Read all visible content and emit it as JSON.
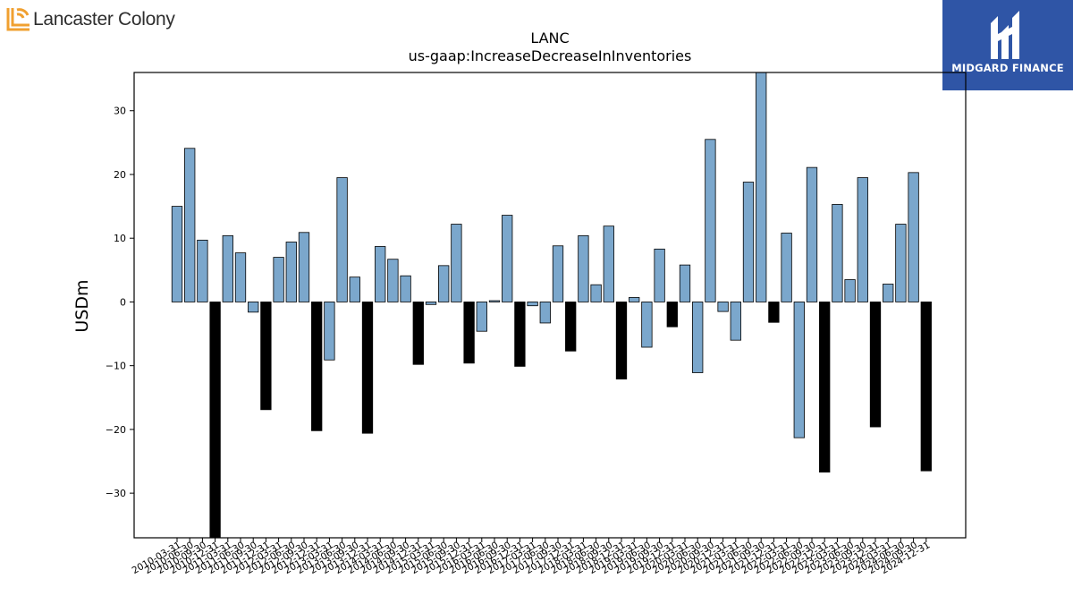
{
  "header": {
    "company_name": "Lancaster Colony",
    "brand_name": "MIDGARD FINANCE"
  },
  "colors": {
    "positive_bar": "#7ba7cc",
    "negative_bar": "#000000",
    "brand_background": "#2f55a6",
    "logo_orange": "#f0a030"
  },
  "icons": {
    "company_logo": "lancaster-colony-logo-icon",
    "brand_logo": "midgard-finance-logo-icon"
  },
  "chart_data": {
    "type": "bar",
    "title": "LANC",
    "subtitle": "us-gaap:IncreaseDecreaseInInventories",
    "xlabel": "",
    "ylabel": "USDm",
    "ylim": [
      -37,
      36
    ],
    "yticks": [
      -30,
      -20,
      -10,
      0,
      10,
      20,
      30
    ],
    "grid": false,
    "legend": "none",
    "series_note_colors": "blue for positive-period bars, black for highlighted bars",
    "categories": [
      "2010-03-31",
      "2010-06-30",
      "2010-09-30",
      "2010-12-31",
      "2011-03-31",
      "2011-06-30",
      "2011-09-30",
      "2011-12-31",
      "2012-03-31",
      "2012-06-30",
      "2012-09-30",
      "2012-12-31",
      "2013-03-31",
      "2013-06-30",
      "2013-09-30",
      "2013-12-31",
      "2014-03-31",
      "2014-06-30",
      "2014-09-30",
      "2014-12-31",
      "2015-03-31",
      "2015-06-30",
      "2015-09-30",
      "2015-12-31",
      "2016-03-31",
      "2016-06-30",
      "2016-09-30",
      "2016-12-31",
      "2017-03-31",
      "2017-06-30",
      "2017-09-30",
      "2017-12-31",
      "2018-03-31",
      "2018-06-30",
      "2018-09-30",
      "2018-12-31",
      "2019-03-31",
      "2019-06-30",
      "2019-09-30",
      "2019-12-31",
      "2020-03-31",
      "2020-06-30",
      "2020-09-30",
      "2020-12-31",
      "2021-03-31",
      "2021-06-30",
      "2021-09-30",
      "2021-12-31",
      "2022-03-31",
      "2022-06-30",
      "2022-09-30",
      "2022-12-31",
      "2023-03-31",
      "2023-06-30",
      "2023-09-30",
      "2023-12-31",
      "2024-03-31",
      "2024-06-30",
      "2024-09-30",
      "2024-12-31"
    ],
    "values": [
      15.0,
      24.1,
      9.7,
      -40.0,
      10.4,
      7.7,
      -1.6,
      -16.9,
      7.0,
      9.4,
      10.9,
      -20.2,
      -9.1,
      19.5,
      3.9,
      -20.6,
      8.7,
      6.7,
      4.1,
      -9.8,
      -0.4,
      5.7,
      12.2,
      -9.6,
      -4.6,
      0.2,
      13.6,
      -10.1,
      -0.6,
      -3.3,
      8.8,
      -7.7,
      10.4,
      2.7,
      11.9,
      -12.1,
      0.7,
      -7.1,
      8.3,
      -3.9,
      5.8,
      -11.1,
      25.5,
      -1.5,
      -6.0,
      18.8,
      40.0,
      -3.2,
      10.8,
      -21.3,
      21.1,
      -26.7,
      15.3,
      3.5,
      19.5,
      -19.6,
      2.8,
      12.2,
      20.3,
      -26.5
    ],
    "highlight": [
      false,
      false,
      false,
      true,
      false,
      false,
      false,
      true,
      false,
      false,
      false,
      true,
      false,
      false,
      false,
      true,
      false,
      false,
      false,
      true,
      false,
      false,
      false,
      true,
      false,
      false,
      false,
      true,
      false,
      false,
      false,
      true,
      false,
      false,
      false,
      true,
      false,
      false,
      false,
      true,
      false,
      false,
      false,
      false,
      false,
      false,
      false,
      true,
      false,
      false,
      false,
      true,
      false,
      false,
      false,
      true,
      false,
      false,
      false,
      true
    ]
  }
}
